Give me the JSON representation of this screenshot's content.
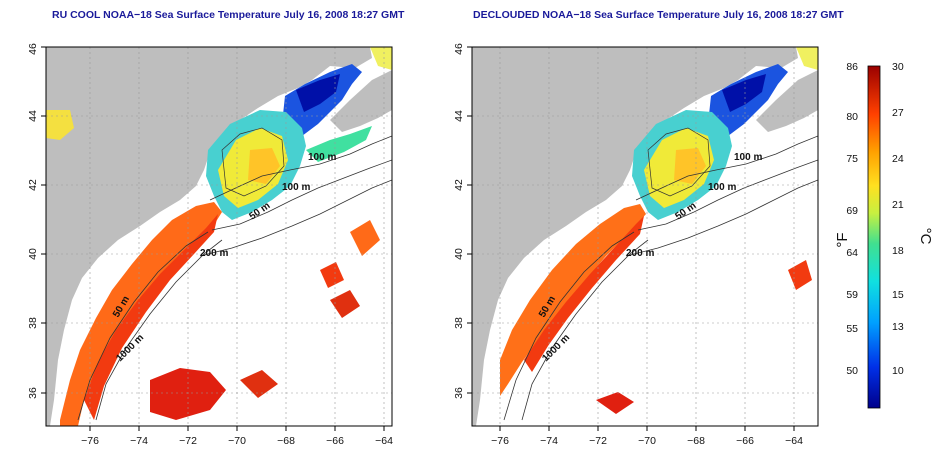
{
  "maps": [
    {
      "title": "RU COOL NOAA−18 Sea Surface Temperature July 16, 2008 18:27 GMT",
      "x_ticks": [
        "−76",
        "−74",
        "−72",
        "−70",
        "−68",
        "−66",
        "−64"
      ],
      "y_ticks": [
        "36",
        "38",
        "40",
        "42",
        "44",
        "46"
      ],
      "contours": [
        "100 m",
        "100 m",
        "50 m",
        "200 m",
        "50 m",
        "1000 m"
      ]
    },
    {
      "title": "DECLOUDED NOAA−18 Sea Surface Temperature July 16, 2008 18:27 GMT",
      "x_ticks": [
        "−76",
        "−74",
        "−72",
        "−70",
        "−68",
        "−66",
        "−64"
      ],
      "y_ticks": [
        "36",
        "38",
        "40",
        "42",
        "44",
        "46"
      ],
      "contours": [
        "100 m",
        "100 m",
        "50 m",
        "200 m",
        "50 m",
        "1000 m"
      ]
    }
  ],
  "colorbar": {
    "fahrenheit_ticks": [
      "86",
      "80",
      "75",
      "69",
      "64",
      "59",
      "55",
      "50"
    ],
    "celsius_ticks": [
      "30",
      "27",
      "24",
      "21",
      "18",
      "15",
      "13",
      "10"
    ],
    "fahrenheit_unit": "°F",
    "celsius_unit": "°C"
  }
}
